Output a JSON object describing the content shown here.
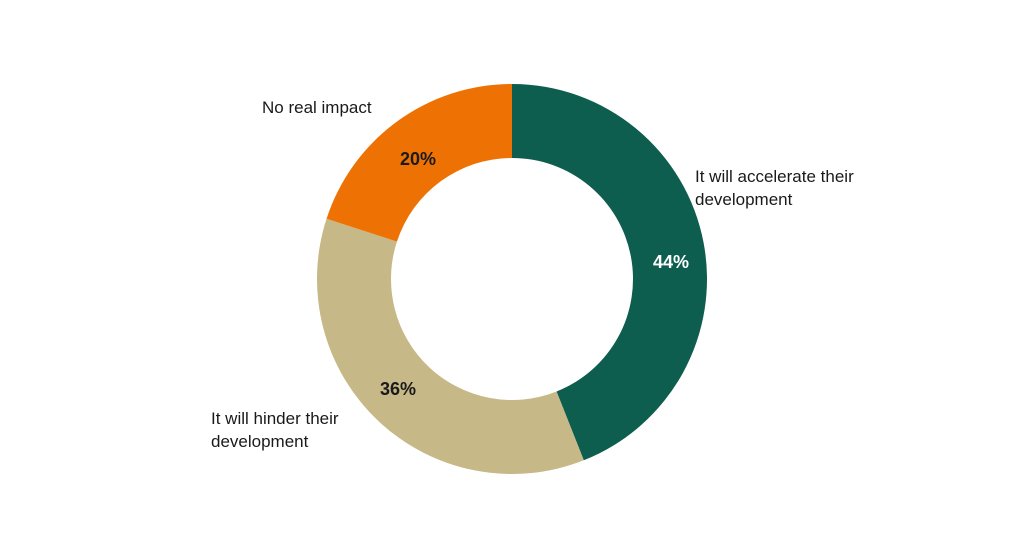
{
  "chart_data": {
    "type": "pie",
    "donut": true,
    "categories": [
      "It will accelerate their development",
      "It will hinder their development",
      "No real impact"
    ],
    "values": [
      44,
      36,
      20
    ],
    "value_labels": [
      "44%",
      "36%",
      "20%"
    ],
    "label_lines": [
      [
        "It will accelerate their",
        "development"
      ],
      [
        "It will hinder their",
        "development"
      ],
      [
        "No real impact"
      ]
    ],
    "colors": [
      "#0e5e4f",
      "#c7b887",
      "#ee7203"
    ],
    "value_label_colors": [
      "#ffffff",
      "#1a1a1a",
      "#1a1a1a"
    ],
    "start": "12 o'clock",
    "direction": "clockwise"
  }
}
